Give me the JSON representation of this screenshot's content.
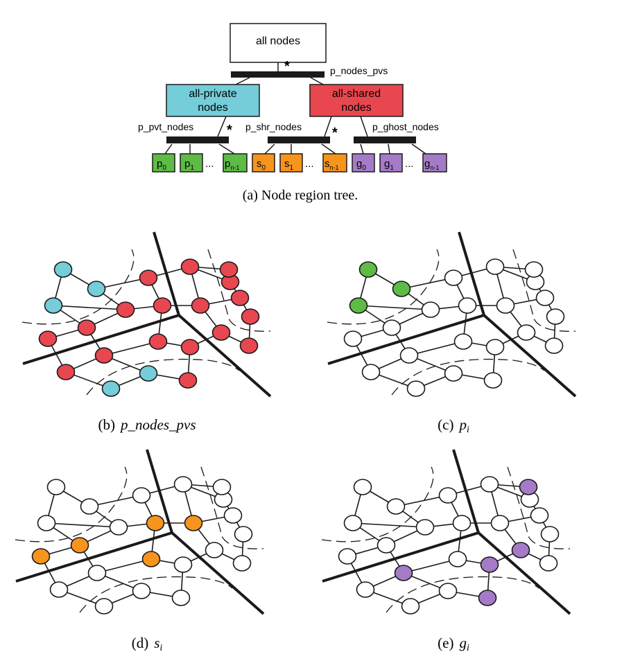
{
  "tree": {
    "root": "all nodes",
    "partition_top": "p_nodes_pvs",
    "private": [
      "all-private",
      "nodes"
    ],
    "shared": [
      "all-shared",
      "nodes"
    ],
    "partition_private": "p_pvt_nodes",
    "partition_shared": "p_shr_nodes",
    "partition_ghost": "p_ghost_nodes",
    "star": "*",
    "ellipsis": "...",
    "leaves_private": [
      {
        "base": "p",
        "sub": "0"
      },
      {
        "base": "p",
        "sub": "1"
      },
      {
        "base": "p",
        "sub": "n-1"
      }
    ],
    "leaves_shared": [
      {
        "base": "s",
        "sub": "0"
      },
      {
        "base": "s",
        "sub": "1"
      },
      {
        "base": "s",
        "sub": "n-1"
      }
    ],
    "leaves_ghost": [
      {
        "base": "g",
        "sub": "0"
      },
      {
        "base": "g",
        "sub": "1"
      },
      {
        "base": "g",
        "sub": "n-1"
      }
    ]
  },
  "captions": {
    "a": "(a)  Node region tree.",
    "b": {
      "prefix": "(b)",
      "math": "p_nodes_pvs"
    },
    "c": {
      "prefix": "(c)",
      "base": "p",
      "sub": "i"
    },
    "d": {
      "prefix": "(d)",
      "base": "s",
      "sub": "i"
    },
    "e": {
      "prefix": "(e)",
      "base": "g",
      "sub": "i"
    }
  },
  "colors": {
    "private": "#74CDD8",
    "shared": "#E8474F",
    "pvt_leaf": "#5DBB46",
    "shr_leaf": "#F7941D",
    "ghost_leaf": "#A57BC8",
    "node_empty": "#FFFFFF",
    "stroke": "#1A1A1A"
  },
  "graph": {
    "panels": [
      {
        "id": "b",
        "private": [
          0,
          1,
          2,
          15,
          16
        ],
        "shared": [
          3,
          4,
          5,
          6,
          7,
          8,
          9,
          10,
          11,
          12,
          13,
          14,
          17,
          18,
          19,
          20,
          21,
          22
        ]
      },
      {
        "id": "c",
        "pvt": [
          0,
          1,
          2
        ]
      },
      {
        "id": "d",
        "shr": [
          6,
          7,
          8,
          9,
          10
        ]
      },
      {
        "id": "e",
        "ghost": [
          11,
          13,
          14,
          17,
          22
        ]
      }
    ]
  }
}
